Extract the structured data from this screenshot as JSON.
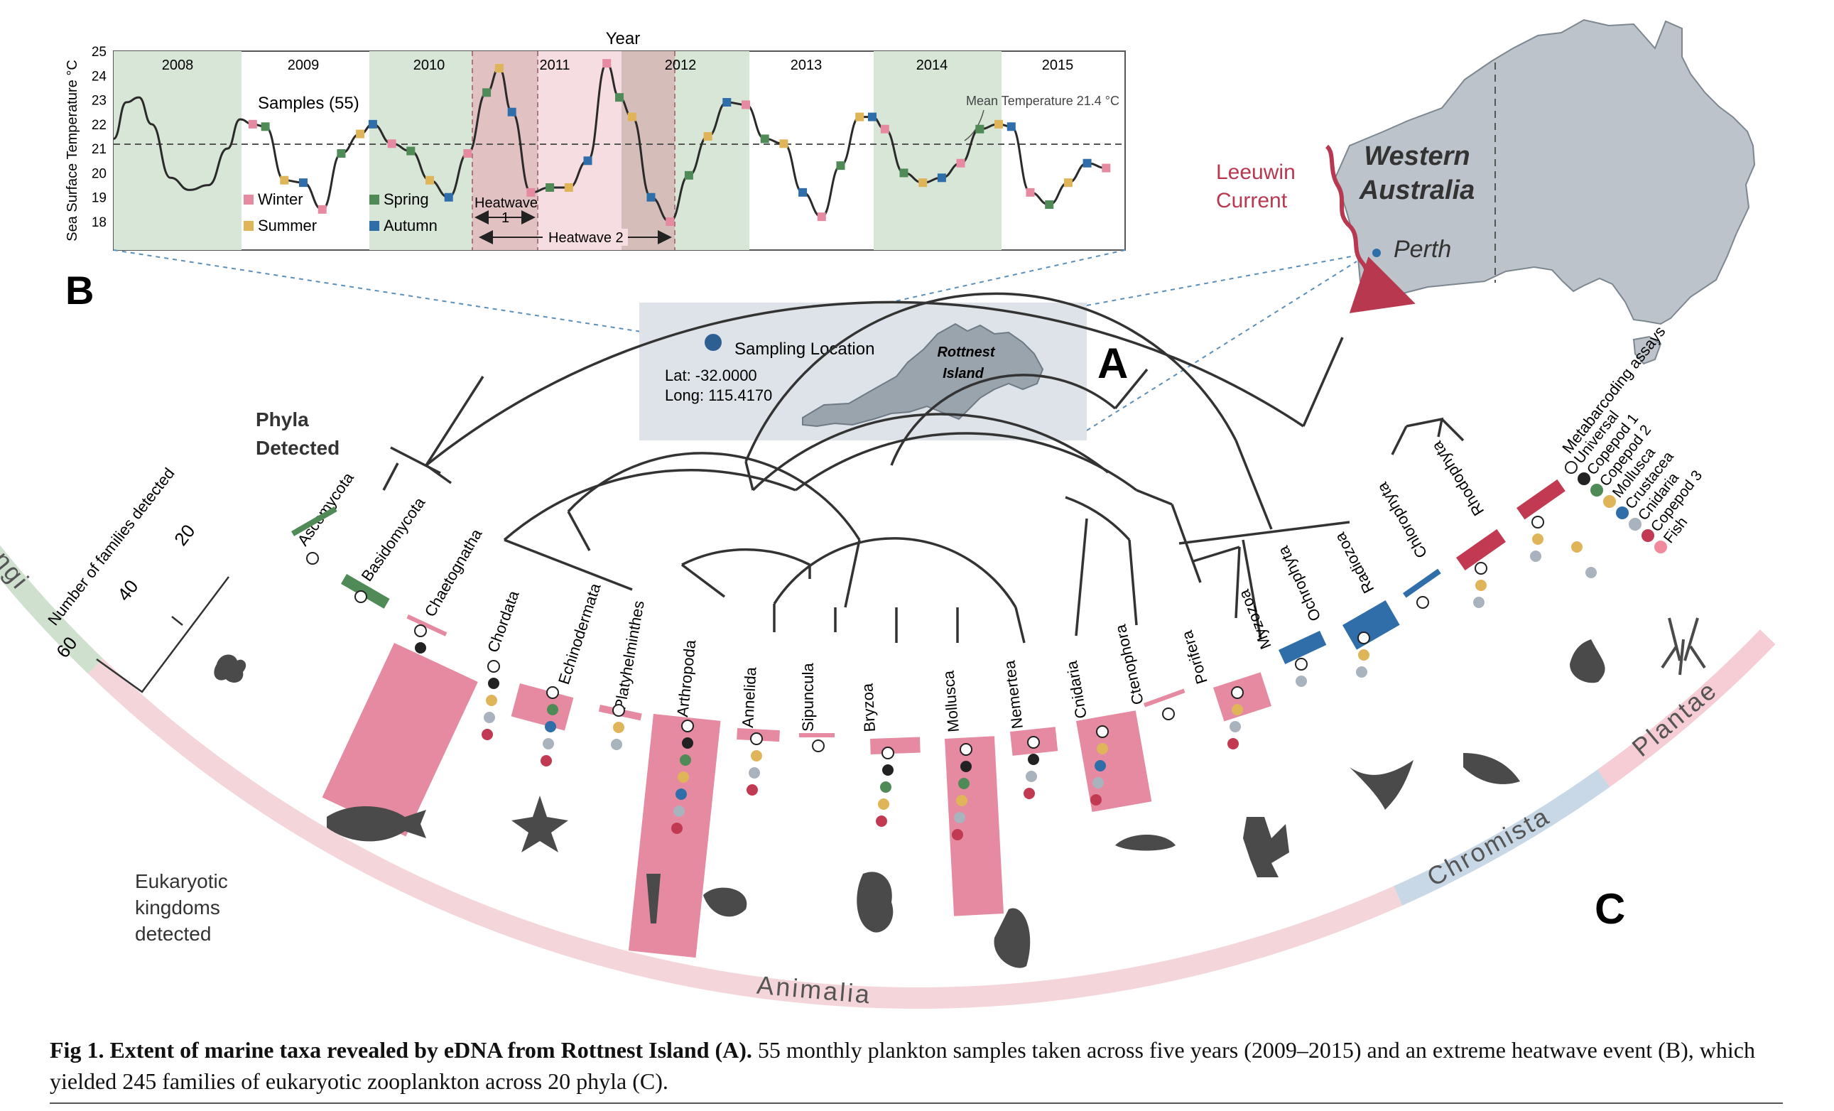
{
  "panel_b": {
    "letter": "B",
    "x_title": "Year",
    "y_title": "Sea Surface Temperature °C",
    "y_ticks": [
      "25",
      "24",
      "23",
      "22",
      "21",
      "20",
      "19",
      "18"
    ],
    "years": [
      "2008",
      "2009",
      "2010",
      "2011",
      "2012",
      "2013",
      "2014",
      "2015"
    ],
    "samples_label": "Samples (55)",
    "mean_label": "Mean Temperature 21.4 °C",
    "heatwave1_label": "Heatwave",
    "heatwave1_num": "1",
    "heatwave2_label": "Heatwave 2",
    "legend": [
      {
        "label": "Winter",
        "color": "#e58aa0"
      },
      {
        "label": "Summer",
        "color": "#e0b55a"
      },
      {
        "label": "Spring",
        "color": "#4f8a57"
      },
      {
        "label": "Autumn",
        "color": "#2f6ea8"
      }
    ]
  },
  "chart_data": {
    "type": "line",
    "title": "",
    "xlabel": "Year",
    "ylabel": "Sea Surface Temperature °C",
    "ylim": [
      17,
      25
    ],
    "mean_temperature": 21.4,
    "x": [
      2008.0,
      2008.1,
      2008.2,
      2008.3,
      2008.45,
      2008.6,
      2008.75,
      2008.9,
      2009.0,
      2009.1,
      2009.2,
      2009.35,
      2009.5,
      2009.65,
      2009.8,
      2009.95,
      2010.05,
      2010.2,
      2010.35,
      2010.5,
      2010.65,
      2010.8,
      2010.95,
      2011.05,
      2011.15,
      2011.3,
      2011.45,
      2011.6,
      2011.75,
      2011.9,
      2012.0,
      2012.1,
      2012.25,
      2012.4,
      2012.55,
      2012.7,
      2012.85,
      2013.0,
      2013.15,
      2013.3,
      2013.45,
      2013.6,
      2013.75,
      2013.9,
      2014.0,
      2014.1,
      2014.25,
      2014.4,
      2014.55,
      2014.7,
      2014.85,
      2015.0,
      2015.1,
      2015.25,
      2015.4,
      2015.55,
      2015.7,
      2015.85
    ],
    "y": [
      21.4,
      22.9,
      23.1,
      22.0,
      19.8,
      19.3,
      19.5,
      21.0,
      22.2,
      22.0,
      21.9,
      19.7,
      19.6,
      18.5,
      20.8,
      21.6,
      22.0,
      21.2,
      20.9,
      19.7,
      19.0,
      20.8,
      23.3,
      24.3,
      22.5,
      19.2,
      19.4,
      19.4,
      20.5,
      24.5,
      23.1,
      22.3,
      19.0,
      18.0,
      19.9,
      21.5,
      22.9,
      22.8,
      21.4,
      21.2,
      19.2,
      18.2,
      20.3,
      22.3,
      22.3,
      21.8,
      20.0,
      19.6,
      19.8,
      20.4,
      21.8,
      22.0,
      21.9,
      19.2,
      18.7,
      19.6,
      20.4,
      20.2
    ]
  },
  "panel_a": {
    "letter": "A",
    "sampling_label": "Sampling Location",
    "lat": "Lat: -32.0000",
    "long": "Long: 115.4170",
    "island_line1": "Rottnest",
    "island_line2": "Island"
  },
  "map": {
    "region_line1": "Western",
    "region_line2": "Australia",
    "city": "Perth",
    "current_line1": "Leeuwin",
    "current_line2": "Current"
  },
  "panel_c": {
    "letter": "C",
    "phyla_title_1": "Phyla",
    "phyla_title_2": "Detected",
    "scale_title": "Number of families detected",
    "scale_ticks": [
      "20",
      "40",
      "60"
    ],
    "kingdoms_title_1": "Eukaryotic",
    "kingdoms_title_2": "kingdoms",
    "kingdoms_title_3": "detected",
    "kingdoms": [
      "Fungi",
      "Animalia",
      "Chromista",
      "Plantae"
    ],
    "assays_title": "Metabarcoding assays",
    "assays": [
      {
        "label": "Universal",
        "color": "#ffffff"
      },
      {
        "label": "Copepod 1",
        "color": "#222222"
      },
      {
        "label": "Copepod 2",
        "color": "#4f8a57"
      },
      {
        "label": "Mollusca",
        "color": "#e0b55a"
      },
      {
        "label": "Crustacea",
        "color": "#2f6ea8"
      },
      {
        "label": "Cnidaria",
        "color": "#a9b3bd"
      },
      {
        "label": "Copepod 3",
        "color": "#c23a52"
      },
      {
        "label": "Fish",
        "color": "#f08a9c"
      }
    ],
    "phyla": [
      "Ascomycota",
      "Basidomycota",
      "Chaetognatha",
      "Chordata",
      "Echinodermata",
      "Platyhelminthes",
      "Arthropoda",
      "Annelida",
      "Sipuncula",
      "Bryzoa",
      "Mollusca",
      "Nemertea",
      "Cnidaria",
      "Ctenophora",
      "Porifera",
      "Myzozoa",
      "Ochrophyta",
      "Radiozoa",
      "Chlorophyta",
      "Rhodophyta"
    ]
  },
  "caption": {
    "bold": "Fig 1. Extent of marine taxa revealed by eDNA from Rottnest Island (A).",
    "text": " 55 monthly plankton samples taken across five years (2009–2015) and an extreme heatwave event (B), which yielded 245 families of eukaryotic zooplankton across 20 phyla (C)."
  }
}
